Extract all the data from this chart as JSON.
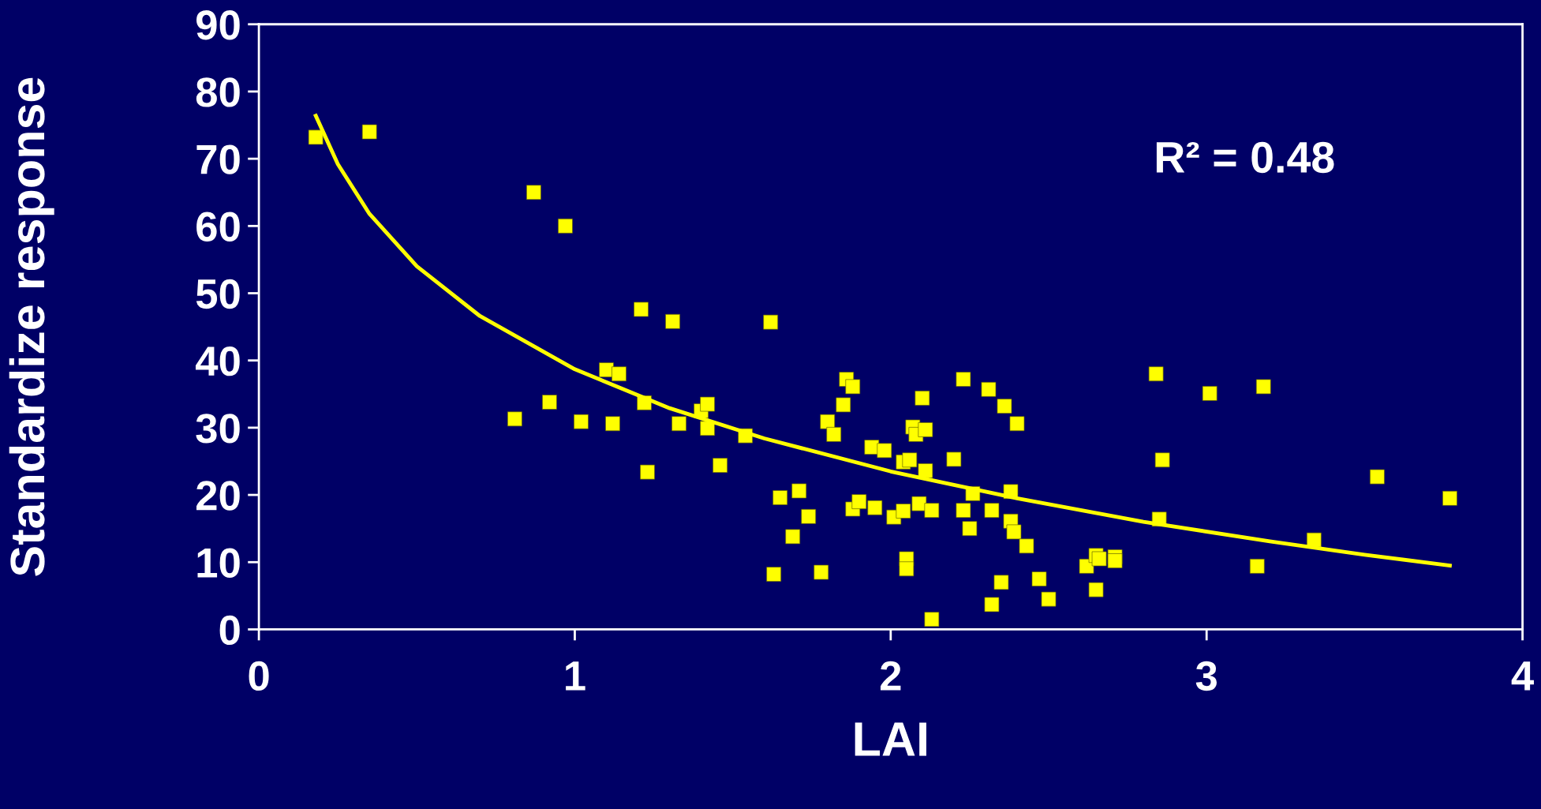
{
  "chart_data": {
    "type": "scatter",
    "xlabel": "LAI",
    "ylabel": "Standardize response",
    "annotations": [
      "R² = 0.48"
    ],
    "xlim": [
      0,
      4
    ],
    "xticks": [
      0,
      1,
      2,
      3,
      4
    ],
    "ylim": [
      0,
      90
    ],
    "yticks": [
      0,
      10,
      20,
      30,
      40,
      50,
      60,
      70,
      80,
      90
    ],
    "grid": false,
    "legend": false,
    "marker": "square",
    "series": [
      {
        "color": "#ffff00",
        "x": [
          0.18,
          0.35,
          0.87,
          0.97,
          0.81,
          0.92,
          1.02,
          1.1,
          1.14,
          1.12,
          1.21,
          1.22,
          1.23,
          1.31,
          1.33,
          1.4,
          1.42,
          1.42,
          1.46,
          1.54,
          1.62,
          1.63,
          1.65,
          1.69,
          1.71,
          1.74,
          1.78,
          1.8,
          1.82,
          1.85,
          1.86,
          1.88,
          1.88,
          1.9,
          1.94,
          1.95,
          1.98,
          2.01,
          2.04,
          2.04,
          2.06,
          2.05,
          2.05,
          2.07,
          2.08,
          2.11,
          2.1,
          2.09,
          2.11,
          2.13,
          2.13,
          2.2,
          2.23,
          2.23,
          2.25,
          2.26,
          2.31,
          2.32,
          2.32,
          2.35,
          2.36,
          2.38,
          2.38,
          2.39,
          2.4,
          2.43,
          2.47,
          2.5,
          2.62,
          2.65,
          2.66,
          2.65,
          2.71,
          2.71,
          2.84,
          2.85,
          2.86,
          3.01,
          3.16,
          3.18,
          3.34,
          3.54,
          3.77
        ],
        "values": [
          73.2,
          74,
          65,
          60,
          31.3,
          33.8,
          30.9,
          38.6,
          38,
          30.6,
          47.6,
          33.7,
          23.4,
          45.8,
          30.6,
          32.5,
          33.5,
          29.9,
          24.4,
          28.8,
          45.7,
          8.2,
          19.6,
          13.8,
          20.6,
          16.8,
          8.5,
          30.9,
          29,
          33.4,
          37.2,
          36.1,
          17.9,
          19,
          27.1,
          18.1,
          26.6,
          16.7,
          17.6,
          24.9,
          25.2,
          10.5,
          9,
          30.1,
          29,
          29.7,
          34.4,
          18.7,
          23.6,
          17.7,
          1.5,
          25.3,
          37.2,
          17.7,
          15,
          20.2,
          35.7,
          3.7,
          17.7,
          7,
          33.2,
          20.5,
          16.1,
          14.5,
          30.6,
          12.4,
          7.5,
          4.5,
          9.4,
          11,
          10.5,
          5.9,
          10.8,
          10.2,
          38,
          16.4,
          25.2,
          35.1,
          9.4,
          36.1,
          13.3,
          22.7,
          19.5
        ]
      },
      {
        "type": "line",
        "color": "#ffff00",
        "marker": "none",
        "line_style": "solid",
        "x": [
          0.18,
          0.25,
          0.35,
          0.5,
          0.7,
          1.0,
          1.3,
          1.6,
          2.0,
          2.4,
          2.8,
          3.2,
          3.5,
          3.77
        ],
        "values": [
          76.4,
          69.2,
          61.8,
          54.0,
          46.6,
          38.7,
          32.9,
          28.4,
          23.5,
          19.5,
          16.0,
          13.1,
          11.1,
          9.5
        ]
      }
    ]
  }
}
